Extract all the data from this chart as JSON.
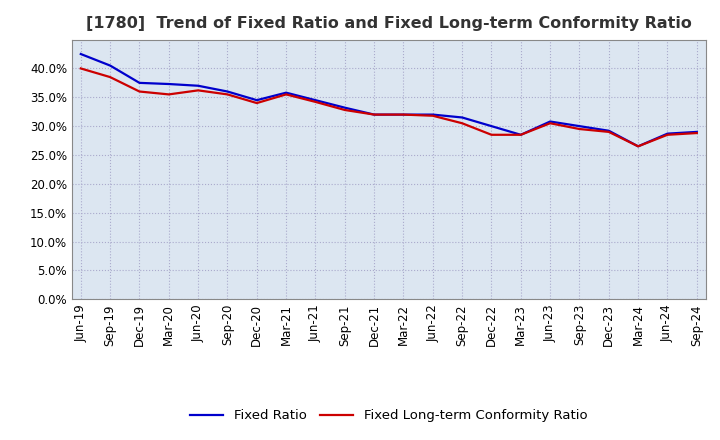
{
  "title": "[1780]  Trend of Fixed Ratio and Fixed Long-term Conformity Ratio",
  "x_labels": [
    "Jun-19",
    "Sep-19",
    "Dec-19",
    "Mar-20",
    "Jun-20",
    "Sep-20",
    "Dec-20",
    "Mar-21",
    "Jun-21",
    "Sep-21",
    "Dec-21",
    "Mar-22",
    "Jun-22",
    "Sep-22",
    "Dec-22",
    "Mar-23",
    "Jun-23",
    "Sep-23",
    "Dec-23",
    "Mar-24",
    "Jun-24",
    "Sep-24"
  ],
  "fixed_ratio": [
    42.5,
    40.5,
    37.5,
    37.3,
    37.0,
    36.0,
    34.5,
    35.8,
    34.5,
    33.2,
    32.0,
    32.0,
    32.0,
    31.5,
    30.0,
    28.5,
    30.8,
    30.0,
    29.2,
    26.5,
    28.7,
    29.0
  ],
  "fixed_lt_ratio": [
    40.0,
    38.5,
    36.0,
    35.5,
    36.2,
    35.5,
    34.0,
    35.5,
    34.2,
    32.8,
    32.0,
    32.0,
    31.8,
    30.5,
    28.5,
    28.5,
    30.5,
    29.5,
    29.0,
    26.5,
    28.5,
    28.8
  ],
  "fixed_ratio_color": "#0000cc",
  "fixed_lt_ratio_color": "#cc0000",
  "ylim": [
    0,
    45
  ],
  "yticks": [
    0.0,
    5.0,
    10.0,
    15.0,
    20.0,
    25.0,
    30.0,
    35.0,
    40.0
  ],
  "legend_fixed": "Fixed Ratio",
  "legend_fixed_lt": "Fixed Long-term Conformity Ratio",
  "outer_background": "#ffffff",
  "plot_background": "#dce6f1",
  "grid_color": "#aaaacc",
  "title_color": "#333333",
  "title_fontsize": 11.5,
  "axis_fontsize": 8.5,
  "legend_fontsize": 9.5,
  "line_width": 1.6
}
